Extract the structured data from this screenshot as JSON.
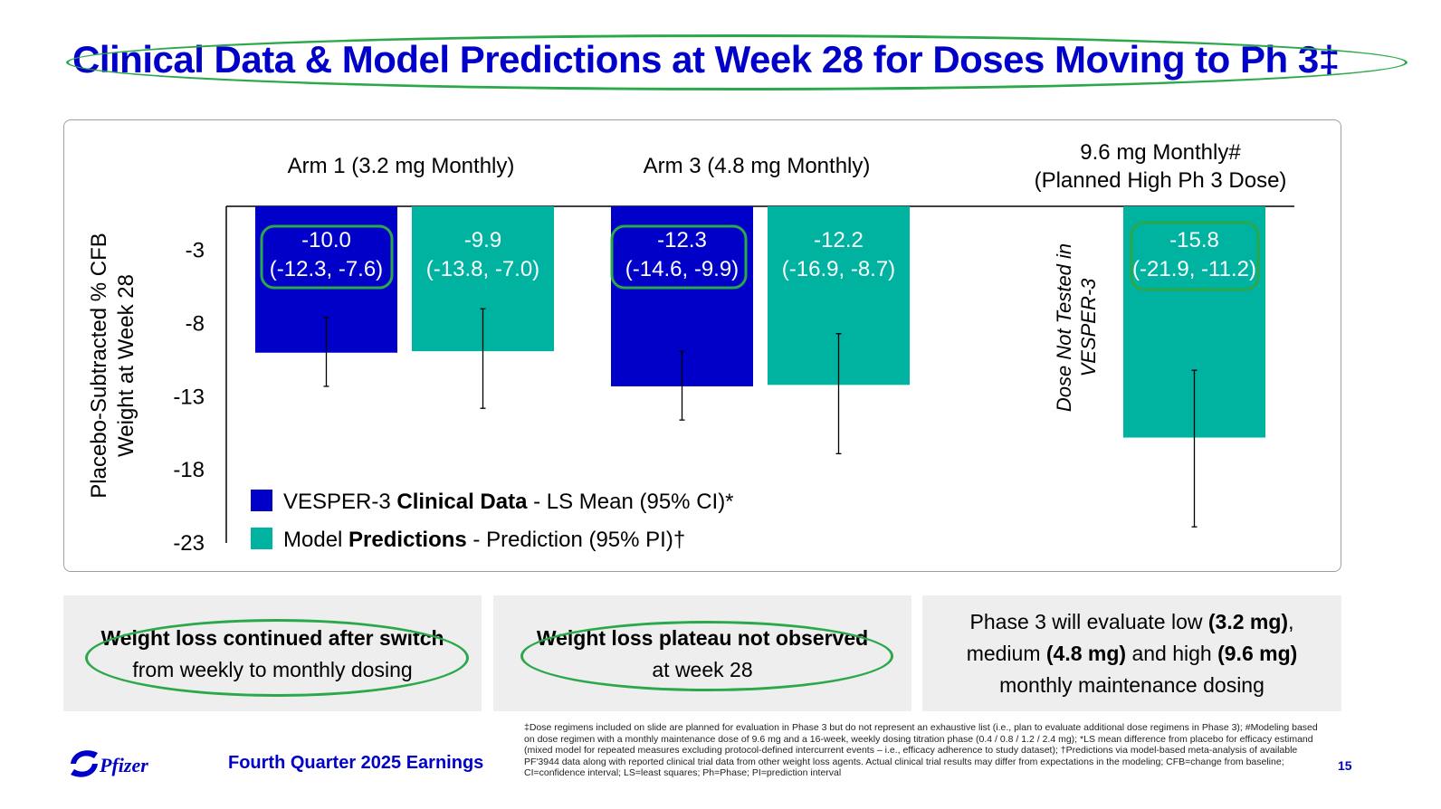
{
  "title": "Clinical Data & Model Predictions at Week 28 for Doses Moving to Ph 3‡",
  "chart_data": {
    "type": "bar",
    "ylabel_line1": "Placebo-Subtracted % CFB",
    "ylabel_line2": "Weight at Week 28",
    "yticks": [
      -3,
      -8,
      -13,
      -18,
      -23
    ],
    "ylim": [
      -23,
      0
    ],
    "groups": [
      {
        "label": "Arm 1 (3.2 mg Monthly)",
        "label2": ""
      },
      {
        "label": "Arm 3 (4.8 mg Monthly)",
        "label2": ""
      },
      {
        "label": "9.6 mg Monthly#",
        "label2": "(Planned High Ph 3 Dose)"
      }
    ],
    "not_tested_note_line1": "Dose Not Tested in",
    "not_tested_note_line2": "VESPER-3",
    "series": [
      {
        "name": "VESPER-3 Clinical Data - LS Mean (95% CI)*",
        "color": "#0000c9",
        "values": [
          -10.0,
          -12.3,
          null
        ],
        "ci_low": [
          -12.3,
          -14.6,
          null
        ],
        "ci_high": [
          -7.6,
          -9.9,
          null
        ],
        "labels": [
          "-10.0",
          "-12.3",
          ""
        ],
        "ci_labels": [
          "(-12.3, -7.6)",
          "(-14.6, -9.9)",
          ""
        ]
      },
      {
        "name": "Model Predictions - Prediction (95% PI)†",
        "color": "#00b2a0",
        "values": [
          -9.9,
          -12.2,
          -15.8
        ],
        "ci_low": [
          -13.8,
          -16.9,
          -21.9
        ],
        "ci_high": [
          -7.0,
          -8.7,
          -11.2
        ],
        "labels": [
          "-9.9",
          "-12.2",
          "-15.8"
        ],
        "ci_labels": [
          "(-13.8, -7.0)",
          "(-16.9, -8.7)",
          "(-21.9, -11.2)"
        ]
      }
    ],
    "legend": [
      {
        "pre": "VESPER-3 ",
        "bold": "Clinical Data",
        "post": " - LS Mean (95% CI)*",
        "color": "#0000c9"
      },
      {
        "pre": "Model ",
        "bold": "Predictions",
        "post": " - Prediction (95% PI)†",
        "color": "#00b2a0"
      }
    ],
    "legend_position": "bottom-left",
    "highlight_color": "#2aa84a"
  },
  "panels": [
    {
      "line1": "Weight loss continued after switch",
      "line2": "from weekly to monthly dosing"
    },
    {
      "line1": "Weight loss plateau not observed",
      "line2": "at week 28"
    },
    {
      "l1a": "Phase 3 will evaluate low ",
      "l1b": "(3.2 mg)",
      "l1c": ",",
      "l2a": "medium ",
      "l2b": "(4.8 mg)",
      "l2c": " and high ",
      "l2d": "(9.6 mg)",
      "l3": "monthly maintenance dosing"
    }
  ],
  "footnote": "‡Dose regimens included on slide are planned for evaluation in Phase 3 but do not represent an exhaustive list (i.e., plan to evaluate additional dose regimens in Phase 3); #Modeling based on dose regimen with a monthly maintenance dose of 9.6 mg and a 16-week, weekly dosing titration phase (0.4 / 0.8 / 1.2 / 2.4 mg); *LS mean difference from placebo for efficacy estimand (mixed model for repeated measures excluding protocol-defined intercurrent events – i.e., efficacy adherence to study dataset); †Predictions via model-based meta-analysis of available PF'3944 data along with reported clinical trial data from other weight loss agents. Actual clinical trial results may differ from expectations in the modeling; CFB=change from baseline; CI=confidence interval; LS=least squares; Ph=Phase; PI=prediction interval",
  "footer": {
    "brand": "Pfizer",
    "earnings": "Fourth Quarter 2025 Earnings",
    "page": "15"
  }
}
